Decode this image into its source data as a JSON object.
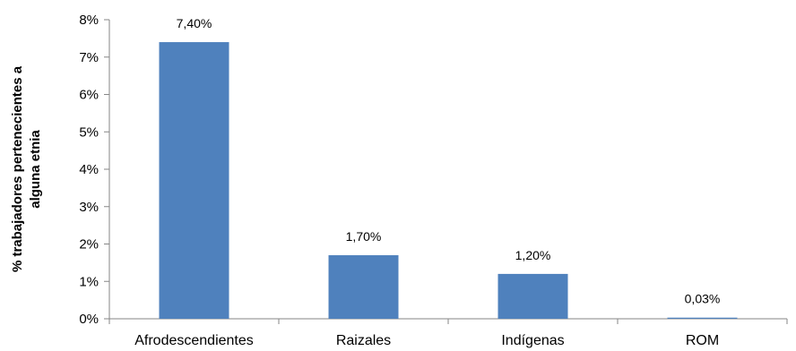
{
  "chart_data": {
    "type": "bar",
    "categories": [
      "Afrodescendientes",
      "Raizales",
      "Indígenas",
      "ROM"
    ],
    "values": [
      7.4,
      1.7,
      1.2,
      0.03
    ],
    "data_labels": [
      "7,40%",
      "1,70%",
      "1,20%",
      "0,03%"
    ],
    "ylabel_lines": [
      "% trabajadores pertenecientes a",
      "alguna etnia"
    ],
    "xlabel": "",
    "ylim": [
      0,
      8
    ],
    "yticks": [
      0,
      1,
      2,
      3,
      4,
      5,
      6,
      7,
      8
    ],
    "ytick_labels": [
      "0%",
      "1%",
      "2%",
      "3%",
      "4%",
      "5%",
      "6%",
      "7%",
      "8%"
    ],
    "bar_color": "#4F81BD",
    "grid": false,
    "legend": "none"
  }
}
